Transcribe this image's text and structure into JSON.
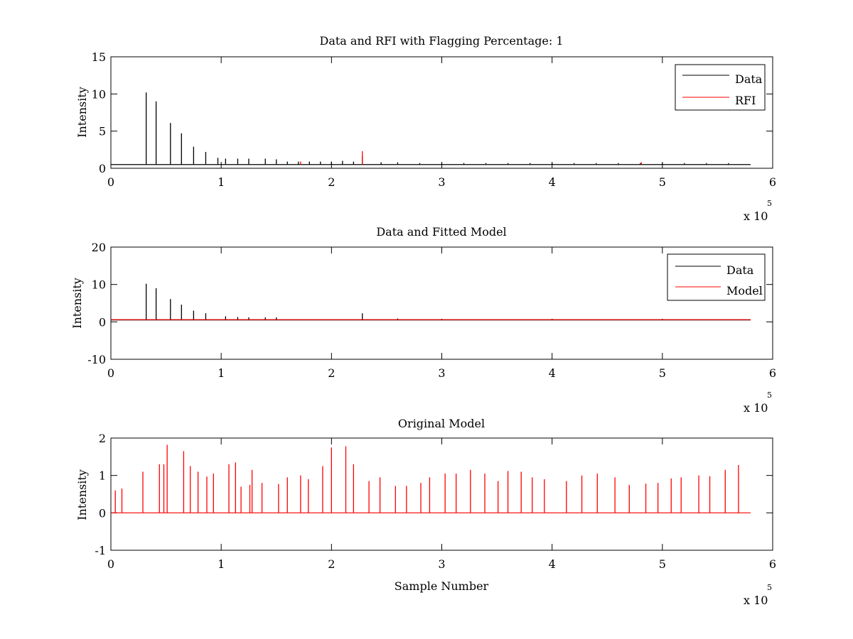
{
  "figure": {
    "background": "#ffffff",
    "axis_color": "#000000"
  },
  "chart_data": [
    {
      "type": "line",
      "title": "Data and RFI with Flagging Percentage: 1",
      "xlabel": "",
      "ylabel": "Intensity",
      "xlim": [
        0,
        600000
      ],
      "ylim": [
        0,
        15
      ],
      "x_tick_labels": [
        "0",
        "1",
        "2",
        "3",
        "4",
        "5",
        "6"
      ],
      "x_tick_values": [
        0,
        100000,
        200000,
        300000,
        400000,
        500000,
        600000
      ],
      "y_tick_labels": [
        "0",
        "5",
        "10",
        "15"
      ],
      "y_tick_values": [
        0,
        5,
        10,
        15
      ],
      "x_exponent": {
        "base_text": "x 10",
        "power": "5"
      },
      "legend": {
        "placement": "top-right",
        "entries": [
          "Data",
          "RFI"
        ]
      },
      "series": [
        {
          "name": "Data",
          "color": "#000000",
          "baseline": 0.5,
          "x_end": 580000,
          "spikes": [
            [
              32000,
              10.2
            ],
            [
              41000,
              9.0
            ],
            [
              54000,
              6.1
            ],
            [
              64000,
              4.7
            ],
            [
              75000,
              2.9
            ],
            [
              86000,
              2.2
            ],
            [
              97000,
              1.4
            ],
            [
              104000,
              1.3
            ],
            [
              115000,
              1.3
            ],
            [
              125000,
              1.3
            ],
            [
              140000,
              1.3
            ],
            [
              150000,
              1.2
            ],
            [
              160000,
              0.9
            ],
            [
              170000,
              0.9
            ],
            [
              180000,
              0.9
            ],
            [
              190000,
              0.9
            ],
            [
              200000,
              0.9
            ],
            [
              210000,
              1.0
            ],
            [
              220000,
              0.9
            ],
            [
              228000,
              1.6
            ],
            [
              245000,
              0.8
            ],
            [
              260000,
              0.8
            ],
            [
              280000,
              0.7
            ],
            [
              300000,
              0.7
            ],
            [
              320000,
              0.7
            ],
            [
              340000,
              0.7
            ],
            [
              360000,
              0.7
            ],
            [
              380000,
              0.7
            ],
            [
              400000,
              0.7
            ],
            [
              420000,
              0.7
            ],
            [
              440000,
              0.7
            ],
            [
              460000,
              0.7
            ],
            [
              480000,
              0.7
            ],
            [
              500000,
              0.7
            ],
            [
              520000,
              0.7
            ],
            [
              540000,
              0.7
            ],
            [
              560000,
              0.7
            ]
          ]
        },
        {
          "name": "RFI",
          "color": "#ff0000",
          "baseline": null,
          "spikes": [
            [
              228000,
              2.3
            ],
            [
              172000,
              0.9
            ],
            [
              481000,
              0.8
            ]
          ]
        }
      ]
    },
    {
      "type": "line",
      "title": "Data and Fitted Model",
      "xlabel": "",
      "ylabel": "Intensity",
      "xlim": [
        0,
        600000
      ],
      "ylim": [
        -10,
        20
      ],
      "x_tick_labels": [
        "0",
        "1",
        "2",
        "3",
        "4",
        "5",
        "6"
      ],
      "x_tick_values": [
        0,
        100000,
        200000,
        300000,
        400000,
        500000,
        600000
      ],
      "y_tick_labels": [
        "-10",
        "0",
        "10",
        "20"
      ],
      "y_tick_values": [
        -10,
        0,
        10,
        20
      ],
      "x_exponent": {
        "base_text": "x 10",
        "power": "5"
      },
      "legend": {
        "placement": "top-right",
        "entries": [
          "Data",
          "Model"
        ]
      },
      "series": [
        {
          "name": "Data",
          "color": "#000000",
          "baseline": 0.5,
          "x_end": 580000,
          "spikes": [
            [
              32000,
              10.2
            ],
            [
              41000,
              9.0
            ],
            [
              54000,
              6.1
            ],
            [
              64000,
              4.6
            ],
            [
              75000,
              3.0
            ],
            [
              86000,
              2.3
            ],
            [
              104000,
              1.5
            ],
            [
              115000,
              1.3
            ],
            [
              125000,
              1.2
            ],
            [
              140000,
              1.2
            ],
            [
              150000,
              1.2
            ],
            [
              228000,
              2.3
            ],
            [
              260000,
              0.9
            ],
            [
              300000,
              0.8
            ],
            [
              400000,
              0.8
            ],
            [
              500000,
              0.8
            ]
          ]
        },
        {
          "name": "Model",
          "color": "#ff0000",
          "baseline": 0.6,
          "x_end": 580000,
          "spikes": []
        }
      ]
    },
    {
      "type": "line",
      "title": "Original Model",
      "xlabel": "Sample Number",
      "ylabel": "Intensity",
      "xlim": [
        0,
        600000
      ],
      "ylim": [
        -1,
        2
      ],
      "x_tick_labels": [
        "0",
        "1",
        "2",
        "3",
        "4",
        "5",
        "6"
      ],
      "x_tick_values": [
        0,
        100000,
        200000,
        300000,
        400000,
        500000,
        600000
      ],
      "y_tick_labels": [
        "-1",
        "0",
        "1",
        "2"
      ],
      "y_tick_values": [
        -1,
        0,
        1,
        2
      ],
      "x_exponent": {
        "base_text": "x 10",
        "power": "5"
      },
      "legend": null,
      "series": [
        {
          "name": "",
          "color": "#ff0000",
          "baseline": 0.0,
          "x_end": 580000,
          "spikes": [
            [
              4000,
              0.6
            ],
            [
              10000,
              0.65
            ],
            [
              29000,
              1.1
            ],
            [
              44000,
              1.3
            ],
            [
              48000,
              1.3
            ],
            [
              51000,
              1.82
            ],
            [
              66000,
              1.65
            ],
            [
              72000,
              1.25
            ],
            [
              79000,
              1.1
            ],
            [
              87000,
              0.97
            ],
            [
              93000,
              1.05
            ],
            [
              107000,
              1.3
            ],
            [
              113000,
              1.35
            ],
            [
              118000,
              0.7
            ],
            [
              126000,
              0.75
            ],
            [
              128000,
              1.15
            ],
            [
              137000,
              0.8
            ],
            [
              152000,
              0.77
            ],
            [
              160000,
              0.95
            ],
            [
              172000,
              1.0
            ],
            [
              179000,
              0.9
            ],
            [
              192000,
              1.25
            ],
            [
              200000,
              1.75
            ],
            [
              213000,
              1.78
            ],
            [
              220000,
              1.3
            ],
            [
              234000,
              0.85
            ],
            [
              244000,
              0.95
            ],
            [
              258000,
              0.72
            ],
            [
              268000,
              0.72
            ],
            [
              281000,
              0.8
            ],
            [
              289000,
              0.95
            ],
            [
              303000,
              1.05
            ],
            [
              313000,
              1.05
            ],
            [
              326000,
              1.15
            ],
            [
              339000,
              1.05
            ],
            [
              351000,
              0.85
            ],
            [
              360000,
              1.12
            ],
            [
              372000,
              1.1
            ],
            [
              382000,
              0.95
            ],
            [
              393000,
              0.9
            ],
            [
              413000,
              0.85
            ],
            [
              427000,
              1.0
            ],
            [
              441000,
              1.05
            ],
            [
              457000,
              0.95
            ],
            [
              470000,
              0.75
            ],
            [
              485000,
              0.78
            ],
            [
              496000,
              0.8
            ],
            [
              508000,
              0.92
            ],
            [
              517000,
              0.95
            ],
            [
              533000,
              1.0
            ],
            [
              543000,
              0.98
            ],
            [
              557000,
              1.15
            ],
            [
              569000,
              1.28
            ]
          ]
        }
      ]
    }
  ]
}
